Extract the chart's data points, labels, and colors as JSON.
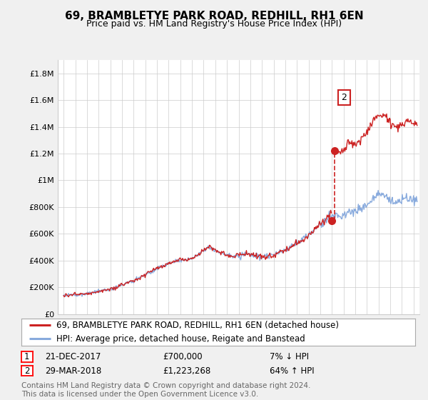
{
  "title": "69, BRAMBLETYE PARK ROAD, REDHILL, RH1 6EN",
  "subtitle": "Price paid vs. HM Land Registry's House Price Index (HPI)",
  "legend_line1": "69, BRAMBLETYE PARK ROAD, REDHILL, RH1 6EN (detached house)",
  "legend_line2": "HPI: Average price, detached house, Reigate and Banstead",
  "transaction1_date": "21-DEC-2017",
  "transaction1_price_str": "£700,000",
  "transaction1_note": "7% ↓ HPI",
  "transaction2_date": "29-MAR-2018",
  "transaction2_price_str": "£1,223,268",
  "transaction2_note": "64% ↑ HPI",
  "footer": "Contains HM Land Registry data © Crown copyright and database right 2024.\nThis data is licensed under the Open Government Licence v3.0.",
  "ylim": [
    0,
    1900000
  ],
  "yticks": [
    0,
    200000,
    400000,
    600000,
    800000,
    1000000,
    1200000,
    1400000,
    1600000,
    1800000
  ],
  "ytick_labels": [
    "£0",
    "£200K",
    "£400K",
    "£600K",
    "£800K",
    "£1M",
    "£1.2M",
    "£1.4M",
    "£1.6M",
    "£1.8M"
  ],
  "xmin": 1994.5,
  "xmax": 2025.5,
  "red_color": "#cc2222",
  "blue_color": "#88aadd",
  "background_color": "#f0f0f0",
  "plot_bg": "#ffffff",
  "grid_color": "#cccccc",
  "title_fontsize": 11,
  "subtitle_fontsize": 9,
  "tick_fontsize": 8,
  "legend_fontsize": 8.5,
  "footer_fontsize": 7.5,
  "t1_year": 2017.97,
  "t1_price": 700000,
  "t2_year": 2018.24,
  "t2_price": 1223268
}
